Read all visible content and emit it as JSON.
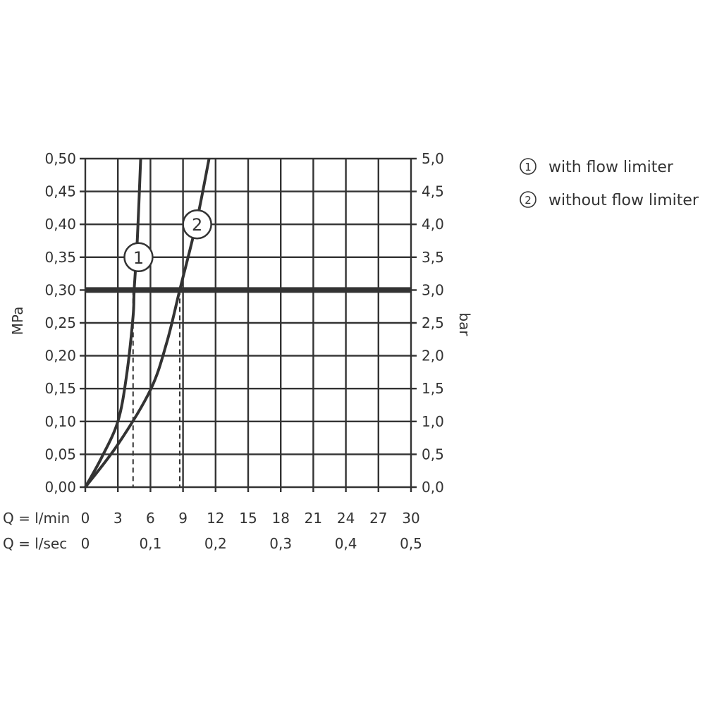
{
  "chart_data": {
    "type": "line",
    "title": "",
    "ylabel_left": "MPa",
    "ylabel_right": "bar",
    "x_row_labels": [
      "Q = l/min",
      "Q = l/sec"
    ],
    "xlim": [
      0,
      30
    ],
    "ylim": [
      0,
      0.5
    ],
    "x_ticks_lmin": [
      "0",
      "3",
      "6",
      "9",
      "12",
      "15",
      "18",
      "21",
      "24",
      "27",
      "30"
    ],
    "x_ticks_lsec": [
      {
        "value": 0,
        "label": "0"
      },
      {
        "value": 6,
        "label": "0,1"
      },
      {
        "value": 12,
        "label": "0,2"
      },
      {
        "value": 18,
        "label": "0,3"
      },
      {
        "value": 24,
        "label": "0,4"
      },
      {
        "value": 30,
        "label": "0,5"
      }
    ],
    "y_ticks_left": [
      "0,00",
      "0,05",
      "0,10",
      "0,15",
      "0,20",
      "0,25",
      "0,30",
      "0,35",
      "0,40",
      "0,45",
      "0,50"
    ],
    "y_ticks_right": [
      "0,0",
      "0,5",
      "1,0",
      "1,5",
      "2,0",
      "2,5",
      "3,0",
      "3,5",
      "4,0",
      "4,5",
      "5,0"
    ],
    "grid": true,
    "reference_line": {
      "y": 0.3
    },
    "series": [
      {
        "name": "with flow limiter",
        "marker": "1",
        "x": [
          0,
          1.5,
          3.0,
          3.8,
          4.4,
          4.5,
          4.8,
          5.1
        ],
        "y": [
          0,
          0.045,
          0.1,
          0.17,
          0.26,
          0.3,
          0.38,
          0.5
        ],
        "label_at": [
          4.9,
          0.35
        ],
        "drop_x": 4.4
      },
      {
        "name": "without flow limiter",
        "marker": "2",
        "x": [
          0,
          3.0,
          6.0,
          7.5,
          8.7,
          10.2,
          11.4
        ],
        "y": [
          0,
          0.065,
          0.148,
          0.22,
          0.3,
          0.4,
          0.5
        ],
        "label_at": [
          10.3,
          0.4
        ],
        "drop_x": 8.7
      }
    ],
    "legend": {
      "position": "top-right",
      "items": [
        {
          "marker": "1",
          "label": "with flow limiter"
        },
        {
          "marker": "2",
          "label": "without flow limiter"
        }
      ]
    },
    "color": "#333333"
  }
}
